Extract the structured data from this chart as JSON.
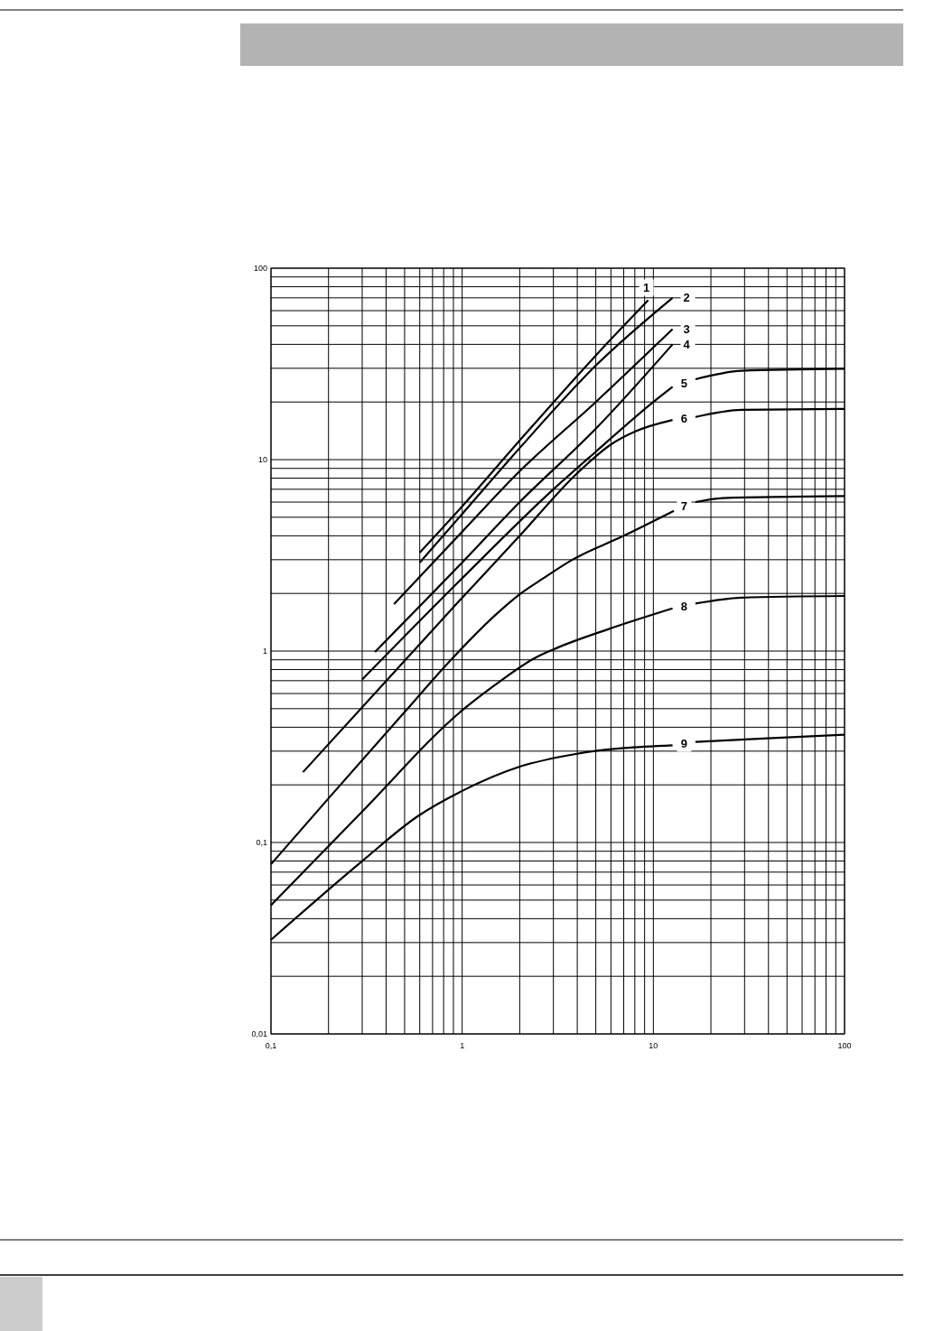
{
  "chart_data": {
    "type": "line",
    "log": "xy",
    "grid": true,
    "line_style": "solid",
    "xlim": [
      0.1,
      100
    ],
    "ylim": [
      0.01,
      100
    ],
    "xticks": [
      {
        "value": 0.1,
        "label": "0,1"
      },
      {
        "value": 0.2,
        "label": null
      },
      {
        "value": 0.3,
        "label": null
      },
      {
        "value": 0.4,
        "label": null
      },
      {
        "value": 0.5,
        "label": null
      },
      {
        "value": 0.6,
        "label": null
      },
      {
        "value": 0.7,
        "label": null
      },
      {
        "value": 0.8,
        "label": null
      },
      {
        "value": 0.9,
        "label": null
      },
      1,
      {
        "value": 2,
        "label": null
      },
      {
        "value": 3,
        "label": null
      },
      {
        "value": 4,
        "label": null
      },
      {
        "value": 5,
        "label": null
      },
      {
        "value": 6,
        "label": null
      },
      {
        "value": 7,
        "label": null
      },
      {
        "value": 8,
        "label": null
      },
      {
        "value": 9,
        "label": null
      },
      10,
      {
        "value": 20,
        "label": null
      },
      {
        "value": 30,
        "label": null
      },
      {
        "value": 40,
        "label": null
      },
      {
        "value": 50,
        "label": null
      },
      {
        "value": 60,
        "label": null
      },
      {
        "value": 70,
        "label": null
      },
      {
        "value": 80,
        "label": null
      },
      {
        "value": 90,
        "label": null
      },
      100
    ],
    "yticks": [
      {
        "value": 0.01,
        "label": "0,01"
      },
      {
        "value": 0.02,
        "label": null
      },
      {
        "value": 0.03,
        "label": null
      },
      {
        "value": 0.04,
        "label": null
      },
      {
        "value": 0.05,
        "label": null
      },
      {
        "value": 0.06,
        "label": null
      },
      {
        "value": 0.07,
        "label": null
      },
      {
        "value": 0.08,
        "label": null
      },
      {
        "value": 0.09,
        "label": null
      },
      {
        "value": 0.1,
        "label": "0,1"
      },
      {
        "value": 0.2,
        "label": null
      },
      {
        "value": 0.3,
        "label": null
      },
      {
        "value": 0.4,
        "label": null
      },
      {
        "value": 0.5,
        "label": null
      },
      {
        "value": 0.6,
        "label": null
      },
      {
        "value": 0.7,
        "label": null
      },
      {
        "value": 0.8,
        "label": null
      },
      {
        "value": 0.9,
        "label": null
      },
      1,
      {
        "value": 2,
        "label": null
      },
      {
        "value": 3,
        "label": null
      },
      {
        "value": 4,
        "label": null
      },
      {
        "value": 5,
        "label": null
      },
      {
        "value": 6,
        "label": null
      },
      {
        "value": 7,
        "label": null
      },
      {
        "value": 8,
        "label": null
      },
      {
        "value": 9,
        "label": null
      },
      10,
      {
        "value": 20,
        "label": null
      },
      {
        "value": 30,
        "label": null
      },
      {
        "value": 40,
        "label": null
      },
      {
        "value": 50,
        "label": null
      },
      {
        "value": 60,
        "label": null
      },
      {
        "value": 70,
        "label": null
      },
      {
        "value": 80,
        "label": null
      },
      {
        "value": 90,
        "label": null
      },
      100
    ],
    "series": [
      {
        "name": "1",
        "color": "#000000",
        "x": [
          0.6,
          1,
          2,
          5,
          9.4
        ],
        "values": [
          3.27,
          5.7,
          12.6,
          35,
          68
        ]
      },
      {
        "name": "2",
        "color": "#000000",
        "x": [
          0.6,
          1,
          2,
          5,
          12.6
        ],
        "values": [
          2.9,
          5.2,
          11.5,
          31,
          70
        ]
      },
      {
        "name": "3",
        "color": "#000000",
        "x": [
          0.44,
          1,
          2,
          5,
          12.6
        ],
        "values": [
          1.76,
          4.2,
          8.7,
          20,
          48
        ]
      },
      {
        "name": "4",
        "color": "#000000",
        "x": [
          0.35,
          1,
          2,
          5,
          12.6
        ],
        "values": [
          0.99,
          2.9,
          6,
          14.5,
          40
        ]
      },
      {
        "name": "5",
        "color": "#000000",
        "x": [
          0.3,
          1,
          3,
          5,
          10,
          12.6,
          14.5,
          16.6,
          29,
          100
        ],
        "values": [
          0.71,
          2.4,
          7,
          11,
          20,
          24,
          null,
          26.3,
          29.1,
          29.8
        ]
      },
      {
        "name": "6",
        "color": "#000000",
        "x": [
          0.147,
          0.5,
          1,
          2,
          4,
          6,
          8,
          12.6,
          14.5,
          16.6,
          29,
          100
        ],
        "values": [
          0.233,
          0.89,
          1.9,
          4,
          8.5,
          12,
          14,
          16.1,
          null,
          16.7,
          18.2,
          18.4
        ]
      },
      {
        "name": "7",
        "color": "#000000",
        "x": [
          0.1,
          0.2,
          0.5,
          0.865,
          1.5,
          2,
          2.66,
          3.77,
          7,
          12.8,
          14.5,
          16.6,
          23,
          100
        ],
        "values": [
          0.077,
          0.17,
          0.48,
          0.89,
          1.55,
          1.98,
          2.4,
          3,
          4,
          5.4,
          null,
          6,
          6.3,
          6.45
        ]
      },
      {
        "name": "8",
        "color": "#000000",
        "x": [
          0.1,
          0.3,
          1,
          1.5,
          2.4,
          3,
          5.8,
          12.6,
          14.5,
          16.6,
          29,
          100
        ],
        "values": [
          0.047,
          0.145,
          0.49,
          0.67,
          0.92,
          1.02,
          1.3,
          1.67,
          null,
          1.77,
          1.9,
          1.94
        ]
      },
      {
        "name": "9",
        "color": "#000000",
        "x": [
          0.1,
          0.3,
          0.585,
          1,
          2,
          3.93,
          12.6,
          14.5,
          16.6,
          39.6,
          100
        ],
        "values": [
          0.031,
          0.08,
          0.137,
          0.186,
          0.249,
          0.29,
          0.322,
          null,
          0.335,
          0.35,
          0.366
        ]
      }
    ]
  }
}
